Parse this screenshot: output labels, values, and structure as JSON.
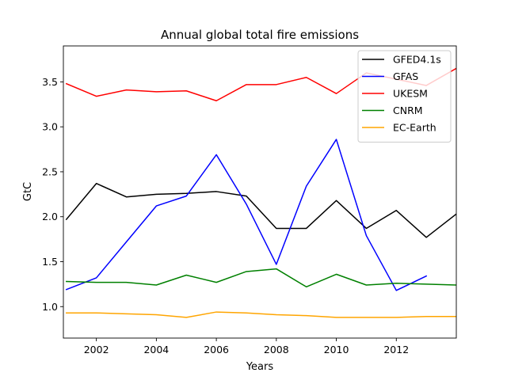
{
  "chart_data": {
    "type": "line",
    "title": "Annual global total fire emissions",
    "xlabel": "Years",
    "ylabel": "GtC",
    "xlim": [
      2000.9,
      2014.0
    ],
    "ylim": [
      0.65,
      3.9
    ],
    "xticks": [
      2002,
      2004,
      2006,
      2008,
      2010,
      2012
    ],
    "yticks": [
      1.0,
      1.5,
      2.0,
      2.5,
      3.0,
      3.5
    ],
    "xtick_labels": [
      "2002",
      "2004",
      "2006",
      "2008",
      "2010",
      "2012"
    ],
    "ytick_labels": [
      "1.0",
      "1.5",
      "2.0",
      "2.5",
      "3.0",
      "3.5"
    ],
    "legend_position": "top-right",
    "grid": false,
    "series": [
      {
        "name": "GFED4.1s",
        "color": "#000000",
        "x": [
          2001,
          2002,
          2003,
          2004,
          2005,
          2006,
          2007,
          2008,
          2009,
          2010,
          2011,
          2012,
          2013,
          2014
        ],
        "y": [
          1.97,
          2.37,
          2.22,
          2.25,
          2.26,
          2.28,
          2.23,
          1.87,
          1.87,
          2.18,
          1.87,
          2.07,
          1.77,
          2.03
        ]
      },
      {
        "name": "GFAS",
        "color": "#0000ff",
        "x": [
          2001,
          2002,
          2003,
          2004,
          2005,
          2006,
          2007,
          2008,
          2009,
          2010,
          2011,
          2012,
          2013
        ],
        "y": [
          1.19,
          1.32,
          1.72,
          2.12,
          2.23,
          2.69,
          2.14,
          1.47,
          2.34,
          2.86,
          1.79,
          1.18,
          1.34
        ]
      },
      {
        "name": "UKESM",
        "color": "#ff0000",
        "x": [
          2001,
          2002,
          2003,
          2004,
          2005,
          2006,
          2007,
          2008,
          2009,
          2010,
          2011,
          2012,
          2013,
          2014
        ],
        "y": [
          3.48,
          3.34,
          3.41,
          3.39,
          3.4,
          3.29,
          3.47,
          3.47,
          3.55,
          3.37,
          3.6,
          3.53,
          3.46,
          3.65
        ]
      },
      {
        "name": "CNRM",
        "color": "#008000",
        "x": [
          2001,
          2002,
          2003,
          2004,
          2005,
          2006,
          2007,
          2008,
          2009,
          2010,
          2011,
          2012,
          2013,
          2014
        ],
        "y": [
          1.28,
          1.27,
          1.27,
          1.24,
          1.35,
          1.27,
          1.39,
          1.42,
          1.22,
          1.36,
          1.24,
          1.26,
          1.25,
          1.24
        ]
      },
      {
        "name": "EC-Earth",
        "color": "#ffa500",
        "x": [
          2001,
          2002,
          2003,
          2004,
          2005,
          2006,
          2007,
          2008,
          2009,
          2010,
          2011,
          2012,
          2013,
          2014
        ],
        "y": [
          0.93,
          0.93,
          0.92,
          0.91,
          0.88,
          0.94,
          0.93,
          0.91,
          0.9,
          0.88,
          0.88,
          0.88,
          0.89,
          0.89
        ]
      }
    ]
  }
}
